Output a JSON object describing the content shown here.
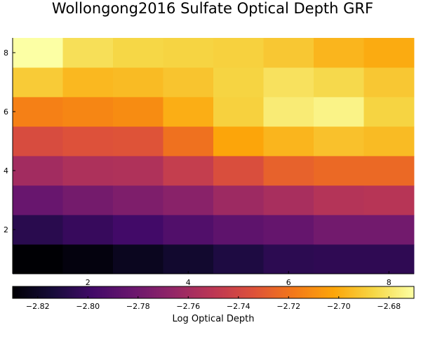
{
  "chart_data": {
    "type": "heatmap",
    "title": "Wollongong2016 Sulfate Optical Depth GRF",
    "colorbar_label": "Log Optical Depth",
    "colormap": "inferno",
    "clim": [
      -2.83,
      -2.67
    ],
    "x_ticks": [
      "2",
      "4",
      "6",
      "8"
    ],
    "y_ticks": [
      "2",
      "4",
      "6",
      "8"
    ],
    "colorbar_ticks": [
      "−2.82",
      "−2.80",
      "−2.78",
      "−2.76",
      "−2.74",
      "−2.72",
      "−2.70",
      "−2.68"
    ],
    "colorbar_tick_values": [
      -2.82,
      -2.8,
      -2.78,
      -2.76,
      -2.74,
      -2.72,
      -2.7,
      -2.68
    ],
    "x": [
      1,
      2,
      3,
      4,
      5,
      6,
      7,
      8
    ],
    "y": [
      1,
      2,
      3,
      4,
      5,
      6,
      7,
      8
    ],
    "values": [
      [
        -2.83,
        -2.807,
        -2.783,
        -2.76,
        -2.737,
        -2.715,
        -2.69,
        -2.67
      ],
      [
        -2.827,
        -2.802,
        -2.778,
        -2.756,
        -2.734,
        -2.713,
        -2.696,
        -2.683
      ],
      [
        -2.822,
        -2.798,
        -2.774,
        -2.755,
        -2.733,
        -2.711,
        -2.695,
        -2.686
      ],
      [
        -2.817,
        -2.792,
        -2.77,
        -2.746,
        -2.721,
        -2.699,
        -2.692,
        -2.687
      ],
      [
        -2.811,
        -2.787,
        -2.762,
        -2.736,
        -2.702,
        -2.688,
        -2.687,
        -2.688
      ],
      [
        -2.806,
        -2.784,
        -2.758,
        -2.727,
        -2.697,
        -2.678,
        -2.682,
        -2.691
      ],
      [
        -2.805,
        -2.779,
        -2.753,
        -2.724,
        -2.693,
        -2.675,
        -2.685,
        -2.697
      ],
      [
        -2.805,
        -2.779,
        -2.752,
        -2.724,
        -2.695,
        -2.687,
        -2.691,
        -2.7
      ]
    ]
  }
}
